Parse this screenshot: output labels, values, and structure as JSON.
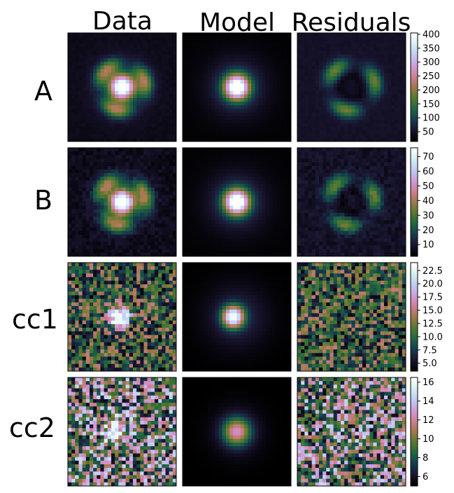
{
  "column_titles": [
    "Data",
    "Model",
    "Residuals"
  ],
  "row_labels": [
    "A",
    "B",
    "cc1",
    "cc2"
  ],
  "colormap": "cubehelix",
  "colormap_stops": [
    "#000000",
    "#1a1530",
    "#163d4e",
    "#1f6642",
    "#54792f",
    "#a07949",
    "#d07e93",
    "#cf9cda",
    "#c1caf3",
    "#d2eeef",
    "#ffffff"
  ],
  "chart_data": [
    {
      "type": "heatmap",
      "row": "A",
      "panels": [
        "Data",
        "Model",
        "Residuals"
      ],
      "colorbar_ticks": [
        50,
        100,
        150,
        200,
        250,
        300,
        350,
        400
      ],
      "range": [
        15,
        405
      ],
      "features": "bright central source with faint arc-like lensed ring; residuals show ring structure"
    },
    {
      "type": "heatmap",
      "row": "B",
      "panels": [
        "Data",
        "Model",
        "Residuals"
      ],
      "colorbar_ticks": [
        10,
        20,
        30,
        40,
        50,
        60,
        70
      ],
      "range": [
        2,
        76
      ],
      "features": "bright central source with faint ring; residuals show ring structure"
    },
    {
      "type": "heatmap",
      "row": "cc1",
      "panels": [
        "Data",
        "Model",
        "Residuals"
      ],
      "colorbar_ticks": [
        5.0,
        7.5,
        10.0,
        12.5,
        15.0,
        17.5,
        20.0,
        22.5
      ],
      "range": [
        3.5,
        24
      ],
      "features": "noisy background with central point source; residuals are noise"
    },
    {
      "type": "heatmap",
      "row": "cc2",
      "panels": [
        "Data",
        "Model",
        "Residuals"
      ],
      "colorbar_ticks": [
        6,
        8,
        10,
        12,
        14,
        16
      ],
      "range": [
        5,
        16.5
      ],
      "features": "noisy background with faint central source; residuals are noise"
    }
  ]
}
